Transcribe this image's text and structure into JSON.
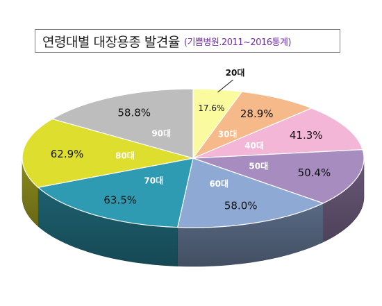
{
  "title": {
    "main": "연령대별 대장용종 발견율",
    "sub": "(기쁨병원.2011~2016통계)"
  },
  "chart_data": {
    "type": "pie",
    "title": "연령대별 대장용종 발견율",
    "subtitle": "(기쁨병원.2011~2016통계)",
    "categories": [
      "20대",
      "30대",
      "40대",
      "50대",
      "60대",
      "70대",
      "80대",
      "90대"
    ],
    "values": [
      17.6,
      28.9,
      41.3,
      50.4,
      58.0,
      63.5,
      62.9,
      58.8
    ],
    "value_labels": [
      "17.6%",
      "28.9%",
      "41.3%",
      "50.4%",
      "58.0%",
      "63.5%",
      "62.9%",
      "58.8%"
    ],
    "colors": [
      "#fafa9e",
      "#f5b98a",
      "#f3b6d6",
      "#a78cc0",
      "#8ea9d3",
      "#2f9bb3",
      "#dede2e",
      "#bdbdbd"
    ],
    "style": "3d-pie",
    "legend": "none"
  }
}
